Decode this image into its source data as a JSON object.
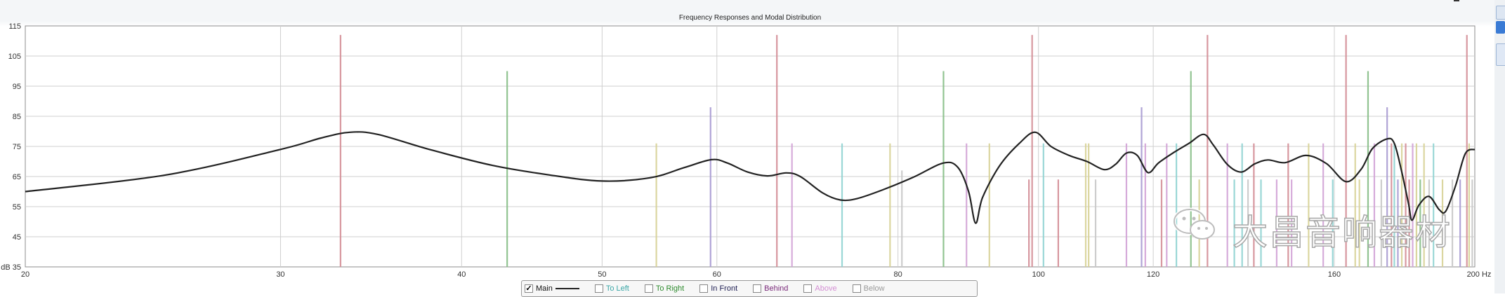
{
  "chart_data": {
    "type": "line",
    "title": "Frequency Responses and Modal Distribution",
    "xlabel": "Hz",
    "ylabel": "dB",
    "x_scale": "log",
    "xlim": [
      20,
      200
    ],
    "ylim": [
      35,
      115
    ],
    "x_ticks": [
      20,
      30,
      40,
      50,
      60,
      80,
      100,
      120,
      160,
      200
    ],
    "y_ticks": [
      35,
      45,
      55,
      65,
      75,
      85,
      95,
      105,
      115
    ],
    "grid": true,
    "legend_placement": "bottom-center",
    "series": [
      {
        "name": "Main",
        "color": "#222222",
        "points": [
          [
            20,
            60
          ],
          [
            25,
            65.5
          ],
          [
            30,
            74
          ],
          [
            32,
            77.8
          ],
          [
            33.5,
            79.7
          ],
          [
            35,
            79
          ],
          [
            38,
            74
          ],
          [
            42,
            68.7
          ],
          [
            46,
            65.5
          ],
          [
            50,
            63.5
          ],
          [
            54,
            64.6
          ],
          [
            57,
            68
          ],
          [
            59.5,
            70.6
          ],
          [
            61,
            69.5
          ],
          [
            63,
            66.5
          ],
          [
            65,
            65.2
          ],
          [
            67,
            66.2
          ],
          [
            68.5,
            65
          ],
          [
            71,
            59.5
          ],
          [
            73,
            57.2
          ],
          [
            75,
            57.7
          ],
          [
            78,
            60.5
          ],
          [
            82,
            64.8
          ],
          [
            86,
            69.5
          ],
          [
            88,
            68
          ],
          [
            89.5,
            60
          ],
          [
            90.5,
            49.5
          ],
          [
            91.5,
            58
          ],
          [
            94,
            68.5
          ],
          [
            97,
            76
          ],
          [
            99.5,
            79.7
          ],
          [
            102,
            75
          ],
          [
            105,
            72
          ],
          [
            108,
            70
          ],
          [
            111,
            67.3
          ],
          [
            113,
            69
          ],
          [
            115,
            72.8
          ],
          [
            117,
            72
          ],
          [
            119,
            66.3
          ],
          [
            121,
            69.5
          ],
          [
            124,
            73
          ],
          [
            127,
            76
          ],
          [
            130,
            79
          ],
          [
            132,
            75.5
          ],
          [
            135,
            69
          ],
          [
            138,
            66.5
          ],
          [
            141,
            69.2
          ],
          [
            144,
            70.5
          ],
          [
            148,
            69.6
          ],
          [
            153,
            72
          ],
          [
            158,
            69.3
          ],
          [
            163,
            63.3
          ],
          [
            167,
            67.5
          ],
          [
            170,
            74.3
          ],
          [
            174,
            77.5
          ],
          [
            176,
            76
          ],
          [
            178,
            67
          ],
          [
            180,
            56
          ],
          [
            181,
            50.5
          ],
          [
            183,
            55.5
          ],
          [
            186,
            58.4
          ],
          [
            189,
            54
          ],
          [
            191,
            53.5
          ],
          [
            194,
            62
          ],
          [
            197,
            72.6
          ],
          [
            200,
            74
          ]
        ]
      }
    ],
    "modal_markers": [
      {
        "freq": 33.0,
        "level": 112,
        "color": "#d38c95"
      },
      {
        "freq": 43.0,
        "level": 100,
        "color": "#86be86"
      },
      {
        "freq": 54.5,
        "level": 76,
        "color": "#d7d296"
      },
      {
        "freq": 59.4,
        "level": 88,
        "color": "#a79ad2"
      },
      {
        "freq": 66.0,
        "level": 112,
        "color": "#d38c95"
      },
      {
        "freq": 67.6,
        "level": 76,
        "color": "#d2a2d6"
      },
      {
        "freq": 73.2,
        "level": 76,
        "color": "#8fd3d2"
      },
      {
        "freq": 79.0,
        "level": 76,
        "color": "#d7d296"
      },
      {
        "freq": 80.5,
        "level": 67,
        "color": "#c8c8c8"
      },
      {
        "freq": 86.0,
        "level": 100,
        "color": "#86be86"
      },
      {
        "freq": 89.2,
        "level": 76,
        "color": "#d2a2d6"
      },
      {
        "freq": 92.5,
        "level": 76,
        "color": "#d7d296"
      },
      {
        "freq": 98.5,
        "level": 64,
        "color": "#d38c95"
      },
      {
        "freq": 99.0,
        "level": 112,
        "color": "#d38c95"
      },
      {
        "freq": 100.8,
        "level": 76,
        "color": "#8fd3d2"
      },
      {
        "freq": 103.2,
        "level": 64,
        "color": "#d38c95"
      },
      {
        "freq": 107.8,
        "level": 76,
        "color": "#d7d296"
      },
      {
        "freq": 108.3,
        "level": 76,
        "color": "#d7d296"
      },
      {
        "freq": 109.5,
        "level": 64,
        "color": "#c8c8c8"
      },
      {
        "freq": 115.0,
        "level": 76,
        "color": "#d2a2d6"
      },
      {
        "freq": 117.8,
        "level": 88,
        "color": "#a79ad2"
      },
      {
        "freq": 118.5,
        "level": 76,
        "color": "#d2a2d6"
      },
      {
        "freq": 121.6,
        "level": 64,
        "color": "#d38c95"
      },
      {
        "freq": 122.6,
        "level": 76,
        "color": "#d2a2d6"
      },
      {
        "freq": 124.5,
        "level": 76,
        "color": "#8fd3d2"
      },
      {
        "freq": 127.4,
        "level": 100,
        "color": "#86be86"
      },
      {
        "freq": 129.1,
        "level": 64,
        "color": "#d7d296"
      },
      {
        "freq": 130.8,
        "level": 112,
        "color": "#d38c95"
      },
      {
        "freq": 135.0,
        "level": 76,
        "color": "#d2a2d6"
      },
      {
        "freq": 136.5,
        "level": 64,
        "color": "#8fd3d2"
      },
      {
        "freq": 138.2,
        "level": 76,
        "color": "#8fd3d2"
      },
      {
        "freq": 139.5,
        "level": 64,
        "color": "#c8c8c8"
      },
      {
        "freq": 140.8,
        "level": 76,
        "color": "#d38c95"
      },
      {
        "freq": 142.4,
        "level": 64,
        "color": "#8fd3d2"
      },
      {
        "freq": 146.0,
        "level": 64,
        "color": "#d2a2d6"
      },
      {
        "freq": 148.7,
        "level": 76,
        "color": "#d38c95"
      },
      {
        "freq": 149.5,
        "level": 64,
        "color": "#d2a2d6"
      },
      {
        "freq": 153.6,
        "level": 76,
        "color": "#d7d296"
      },
      {
        "freq": 157.2,
        "level": 76,
        "color": "#d2a2d6"
      },
      {
        "freq": 159.6,
        "level": 64,
        "color": "#8fd3d2"
      },
      {
        "freq": 163.0,
        "level": 112,
        "color": "#d38c95"
      },
      {
        "freq": 165.4,
        "level": 76,
        "color": "#d7d296"
      },
      {
        "freq": 166.5,
        "level": 64,
        "color": "#d7d296"
      },
      {
        "freq": 168.8,
        "level": 100,
        "color": "#86be86"
      },
      {
        "freq": 170.5,
        "level": 76,
        "color": "#d2a2d6"
      },
      {
        "freq": 172.4,
        "level": 64,
        "color": "#c8c8c8"
      },
      {
        "freq": 174.0,
        "level": 88,
        "color": "#a79ad2"
      },
      {
        "freq": 175.2,
        "level": 76,
        "color": "#d38c95"
      },
      {
        "freq": 176.0,
        "level": 76,
        "color": "#8fd3d2"
      },
      {
        "freq": 177.0,
        "level": 64,
        "color": "#a79ad2"
      },
      {
        "freq": 178.1,
        "level": 76,
        "color": "#d7d296"
      },
      {
        "freq": 179.2,
        "level": 76,
        "color": "#d38c95"
      },
      {
        "freq": 180.2,
        "level": 64,
        "color": "#d38c95"
      },
      {
        "freq": 181.2,
        "level": 76,
        "color": "#d2a2d6"
      },
      {
        "freq": 182.3,
        "level": 76,
        "color": "#d7d296"
      },
      {
        "freq": 183.4,
        "level": 64,
        "color": "#86be86"
      },
      {
        "freq": 184.5,
        "level": 76,
        "color": "#d7d296"
      },
      {
        "freq": 186.0,
        "level": 64,
        "color": "#c8c8c8"
      },
      {
        "freq": 187.3,
        "level": 76,
        "color": "#8fd3d2"
      },
      {
        "freq": 190.0,
        "level": 64,
        "color": "#d7d296"
      },
      {
        "freq": 193.0,
        "level": 64,
        "color": "#c8c8c8"
      },
      {
        "freq": 195.4,
        "level": 64,
        "color": "#a79ad2"
      },
      {
        "freq": 197.5,
        "level": 112,
        "color": "#d38c95"
      },
      {
        "freq": 198.2,
        "level": 76,
        "color": "#d7d296"
      },
      {
        "freq": 199.2,
        "level": 64,
        "color": "#c8c8c8"
      }
    ]
  },
  "legend": {
    "items": [
      {
        "label": "Main",
        "checked": true,
        "color": "#222222"
      },
      {
        "label": "To Left",
        "checked": false,
        "color": "#3aa6a6"
      },
      {
        "label": "To Right",
        "checked": false,
        "color": "#2e8b2e"
      },
      {
        "label": "In Front",
        "checked": false,
        "color": "#222255"
      },
      {
        "label": "Behind",
        "checked": false,
        "color": "#7a2a7a"
      },
      {
        "label": "Above",
        "checked": false,
        "color": "#d48fd4"
      },
      {
        "label": "Below",
        "checked": false,
        "color": "#9a9a9a"
      }
    ]
  },
  "side_panel": {
    "accent_color": "#3a7bd5"
  },
  "watermark": {
    "text": "大昌音响器材",
    "icon": "wechat-icon"
  }
}
